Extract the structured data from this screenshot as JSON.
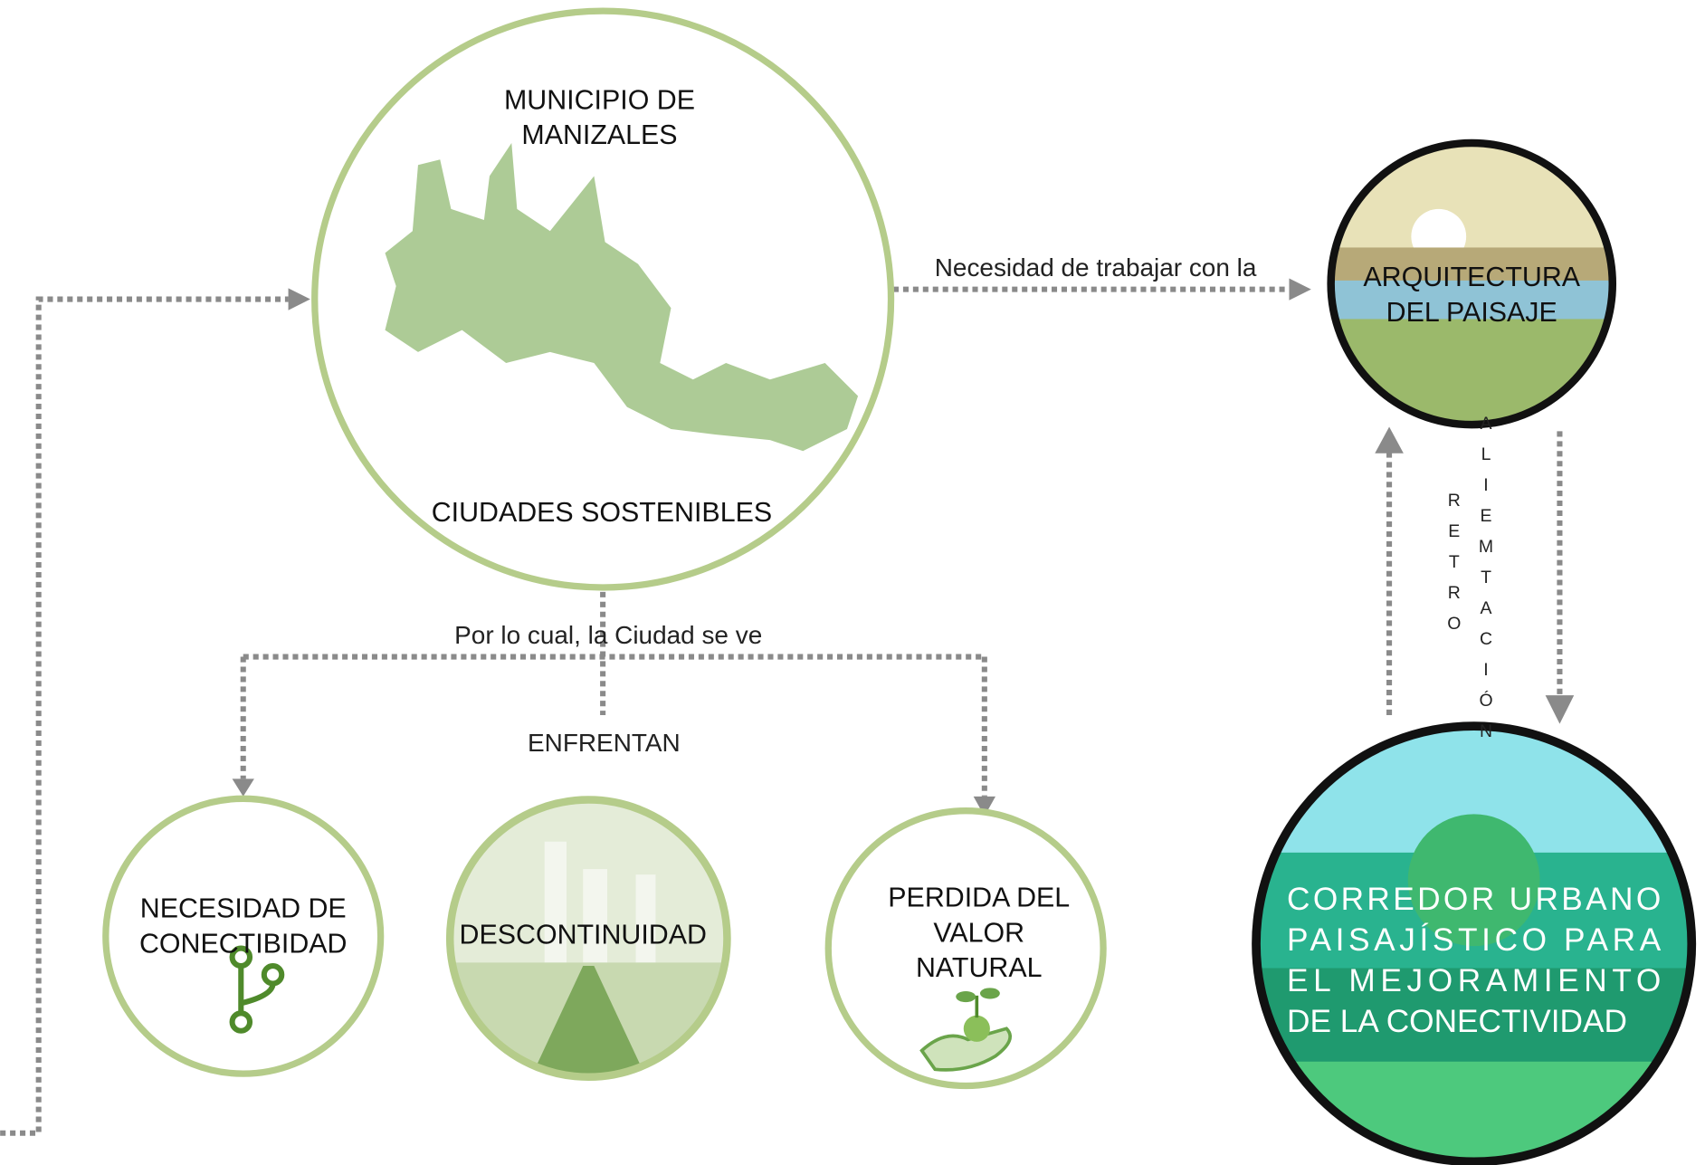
{
  "nodes": [
    {
      "id": "manizales",
      "title": [
        "MUNICIPIO DE",
        "MANIZALES"
      ],
      "label": "CIUDADES SOSTENIBLES"
    },
    {
      "id": "arquitectura",
      "label": [
        "ARQUITECTURA",
        "DEL PAISAJE"
      ]
    },
    {
      "id": "conectibidad",
      "label": [
        "NECESIDAD DE",
        "CONECTIBIDAD"
      ]
    },
    {
      "id": "descontinuidad",
      "label": [
        "DESCONTINUIDAD"
      ]
    },
    {
      "id": "perdida",
      "label": [
        "PERDIDA DEL",
        "VALOR",
        "NATURAL"
      ]
    },
    {
      "id": "corredor",
      "label": [
        "CORREDOR URBANO",
        "PAISAJÍSTICO PARA",
        "EL MEJORAMIENTO",
        "DE LA CONECTIVIDAD"
      ]
    }
  ],
  "edges": [
    {
      "label": "Necesidad de trabajar con la"
    },
    {
      "label": "Por lo cual, la Ciudad se ve"
    },
    {
      "label": "ENFRENTAN"
    },
    {
      "label": [
        "RETRO",
        "ALIEMTACIÓN"
      ]
    }
  ]
}
